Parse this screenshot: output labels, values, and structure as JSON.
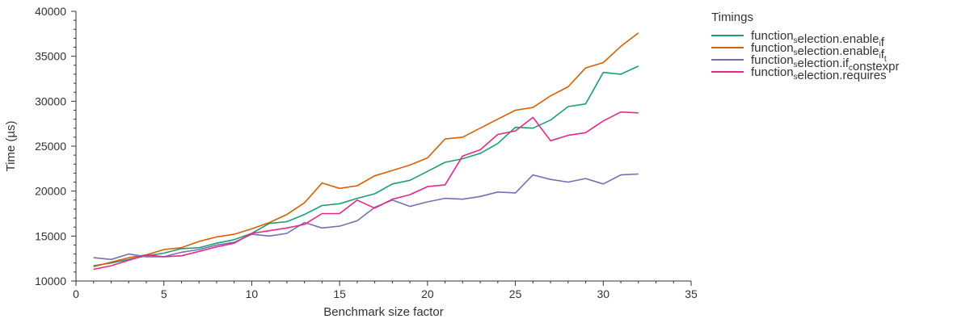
{
  "chart_data": {
    "type": "line",
    "xlabel": "Benchmark size factor",
    "ylabel": "Time (µs)",
    "xlim": [
      0,
      35
    ],
    "ylim": [
      10000,
      40000
    ],
    "x_ticks": [
      0,
      5,
      10,
      15,
      20,
      25,
      30,
      35
    ],
    "y_ticks": [
      10000,
      15000,
      20000,
      25000,
      30000,
      35000,
      40000
    ],
    "grid": false,
    "legend": {
      "title": "Timings",
      "placement": "right"
    },
    "x": [
      1,
      2,
      3,
      4,
      5,
      6,
      7,
      8,
      9,
      10,
      11,
      12,
      13,
      14,
      15,
      16,
      17,
      18,
      19,
      20,
      21,
      22,
      23,
      24,
      25,
      26,
      27,
      28,
      29,
      30,
      31,
      32
    ],
    "series": [
      {
        "name": "function_selection.enable_if",
        "label_parts": [
          [
            "function",
            ""
          ],
          [
            "s",
            "sub"
          ],
          [
            "election.enable",
            ""
          ],
          [
            "i",
            "sub"
          ],
          [
            "f",
            ""
          ]
        ],
        "color": "#1b9e77",
        "values": [
          11700,
          12000,
          12400,
          12800,
          13100,
          13600,
          13700,
          14200,
          14600,
          15300,
          16400,
          16600,
          17400,
          18400,
          18600,
          19200,
          19700,
          20800,
          21200,
          22200,
          23200,
          23600,
          24200,
          25300,
          27100,
          27000,
          27900,
          29400,
          29700,
          33200,
          33000,
          33900
        ]
      },
      {
        "name": "function_selection.enable_if_t",
        "label_parts": [
          [
            "function",
            ""
          ],
          [
            "s",
            "sub"
          ],
          [
            "election.enable",
            ""
          ],
          [
            "i",
            "sub"
          ],
          [
            "f",
            ""
          ],
          [
            "t",
            "sub"
          ]
        ],
        "color": "#d95f02",
        "values": [
          11600,
          12100,
          12600,
          12900,
          13500,
          13700,
          14400,
          14900,
          15200,
          15800,
          16500,
          17400,
          18700,
          20900,
          20300,
          20600,
          21700,
          22300,
          22900,
          23700,
          25800,
          26000,
          27000,
          28000,
          29000,
          29300,
          30600,
          31600,
          33700,
          34300,
          36100,
          37600
        ]
      },
      {
        "name": "function_selection.if_constexpr",
        "label_parts": [
          [
            "function",
            ""
          ],
          [
            "s",
            "sub"
          ],
          [
            "election.if",
            ""
          ],
          [
            "c",
            "sub"
          ],
          [
            "onstexpr",
            ""
          ]
        ],
        "color": "#7570b3",
        "values": [
          12600,
          12400,
          13000,
          12700,
          12700,
          13200,
          13500,
          14000,
          14300,
          15200,
          15000,
          15300,
          16500,
          15900,
          16100,
          16700,
          18200,
          19000,
          18300,
          18800,
          19200,
          19100,
          19400,
          19900,
          19800,
          21800,
          21300,
          21000,
          21400,
          20800,
          21800,
          21900
        ]
      },
      {
        "name": "function_selection.requires",
        "label_parts": [
          [
            "function",
            ""
          ],
          [
            "s",
            "sub"
          ],
          [
            "election.requires",
            ""
          ]
        ],
        "color": "#e7298a",
        "values": [
          11300,
          11700,
          12300,
          12900,
          12700,
          12800,
          13300,
          13800,
          14200,
          15300,
          15600,
          15900,
          16300,
          17500,
          17500,
          19000,
          18100,
          19100,
          19600,
          20500,
          20700,
          23900,
          24600,
          26300,
          26700,
          28200,
          25600,
          26200,
          26500,
          27800,
          28800,
          28700
        ]
      }
    ]
  }
}
